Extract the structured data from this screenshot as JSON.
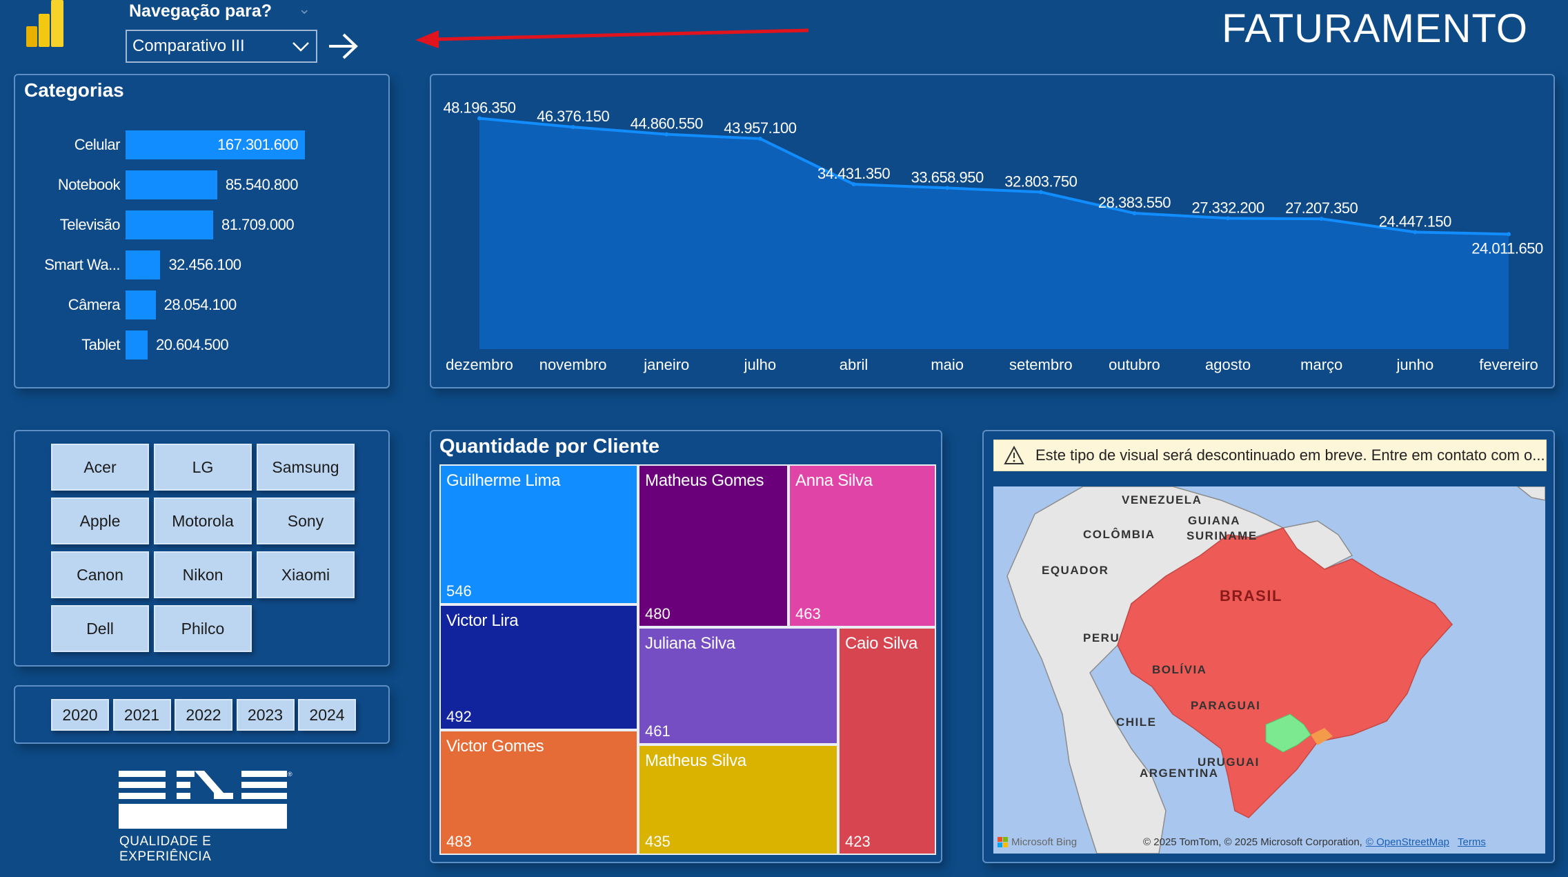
{
  "header": {
    "nav_label": "Navegação para?",
    "nav_selected": "Comparativo III",
    "page_title": "FATURAMENTO",
    "accent_arrow_color": "#e0141e"
  },
  "categories": {
    "title": "Categorias",
    "items": [
      {
        "label": "Celular",
        "value": 167301600,
        "value_label": "167.301.600"
      },
      {
        "label": "Notebook",
        "value": 85540800,
        "value_label": "85.540.800"
      },
      {
        "label": "Televisão",
        "value": 81709000,
        "value_label": "81.709.000"
      },
      {
        "label": "Smart Wa...",
        "value": 32456100,
        "value_label": "32.456.100"
      },
      {
        "label": "Câmera",
        "value": 28054100,
        "value_label": "28.054.100"
      },
      {
        "label": "Tablet",
        "value": 20604500,
        "value_label": "20.604.500"
      }
    ]
  },
  "brands": [
    "Acer",
    "LG",
    "Samsung",
    "Apple",
    "Motorola",
    "Sony",
    "Canon",
    "Nikon",
    "Xiaomi",
    "Dell",
    "Philco"
  ],
  "years": [
    "2020",
    "2021",
    "2022",
    "2023",
    "2024"
  ],
  "logo": {
    "caption": "QUALIDADE E EXPERIÊNCIA"
  },
  "chart_data": {
    "type": "area",
    "categories": [
      "dezembro",
      "novembro",
      "janeiro",
      "julho",
      "abril",
      "maio",
      "setembro",
      "outubro",
      "agosto",
      "março",
      "junho",
      "fevereiro"
    ],
    "values": [
      48196350,
      46376150,
      44860550,
      43957100,
      34431350,
      33658950,
      32803750,
      28383550,
      27332200,
      27207350,
      24447150,
      24011650
    ],
    "value_labels": [
      "48.196.350",
      "46.376.150",
      "44.860.550",
      "43.957.100",
      "34.431.350",
      "33.658.950",
      "32.803.750",
      "28.383.550",
      "27.332.200",
      "27.207.350",
      "24.447.150",
      "24.011.650"
    ],
    "ylim": [
      0,
      50000000
    ],
    "line_color": "#118dff",
    "fill_color": "#0c60b8",
    "grid": false
  },
  "treemap": {
    "title": "Quantidade por Cliente",
    "items": [
      {
        "name": "Guilherme Lima",
        "value": "546",
        "color": "#118dff"
      },
      {
        "name": "Victor Lira",
        "value": "492",
        "color": "#12239e"
      },
      {
        "name": "Victor Gomes",
        "value": "483",
        "color": "#e66c37"
      },
      {
        "name": "Matheus Gomes",
        "value": "480",
        "color": "#6b007b"
      },
      {
        "name": "Anna Silva",
        "value": "463",
        "color": "#e044a7"
      },
      {
        "name": "Juliana Silva",
        "value": "461",
        "color": "#744ec2"
      },
      {
        "name": "Matheus Silva",
        "value": "435",
        "color": "#d9b300"
      },
      {
        "name": "Caio Silva",
        "value": "423",
        "color": "#d64550"
      }
    ]
  },
  "map": {
    "warning": "Este tipo de visual será descontinuado em breve. Entre em contato com o...",
    "labels": [
      "VENEZUELA",
      "GUIANA",
      "SURINAME",
      "COLÔMBIA",
      "EQUADOR",
      "PERU",
      "BRASIL",
      "BOLÍVIA",
      "PARAGUAI",
      "CHILE",
      "URUGUAI",
      "ARGENTINA"
    ],
    "provider": "Microsoft Bing",
    "copyright": "© 2025 TomTom, © 2025 Microsoft Corporation,",
    "osm_link": "© OpenStreetMap",
    "terms": "Terms",
    "highlight_color": "#ee5a55",
    "secondary_color": "#7ce88f"
  }
}
